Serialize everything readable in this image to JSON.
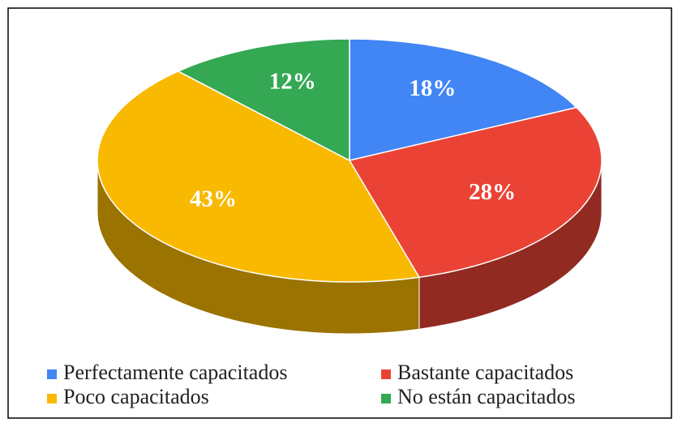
{
  "chart_data": {
    "type": "pie3d",
    "categories": [
      "Perfectamente capacitados",
      "Bastante capacitados",
      "Poco capacitados",
      "No están capacitados"
    ],
    "values": [
      18,
      28,
      43,
      12
    ],
    "value_labels": [
      "18%",
      "28%",
      "43%",
      "12%"
    ],
    "colors": [
      "#4285f4",
      "#ea4335",
      "#f9b900",
      "#34a853"
    ],
    "legend": "bottom"
  }
}
